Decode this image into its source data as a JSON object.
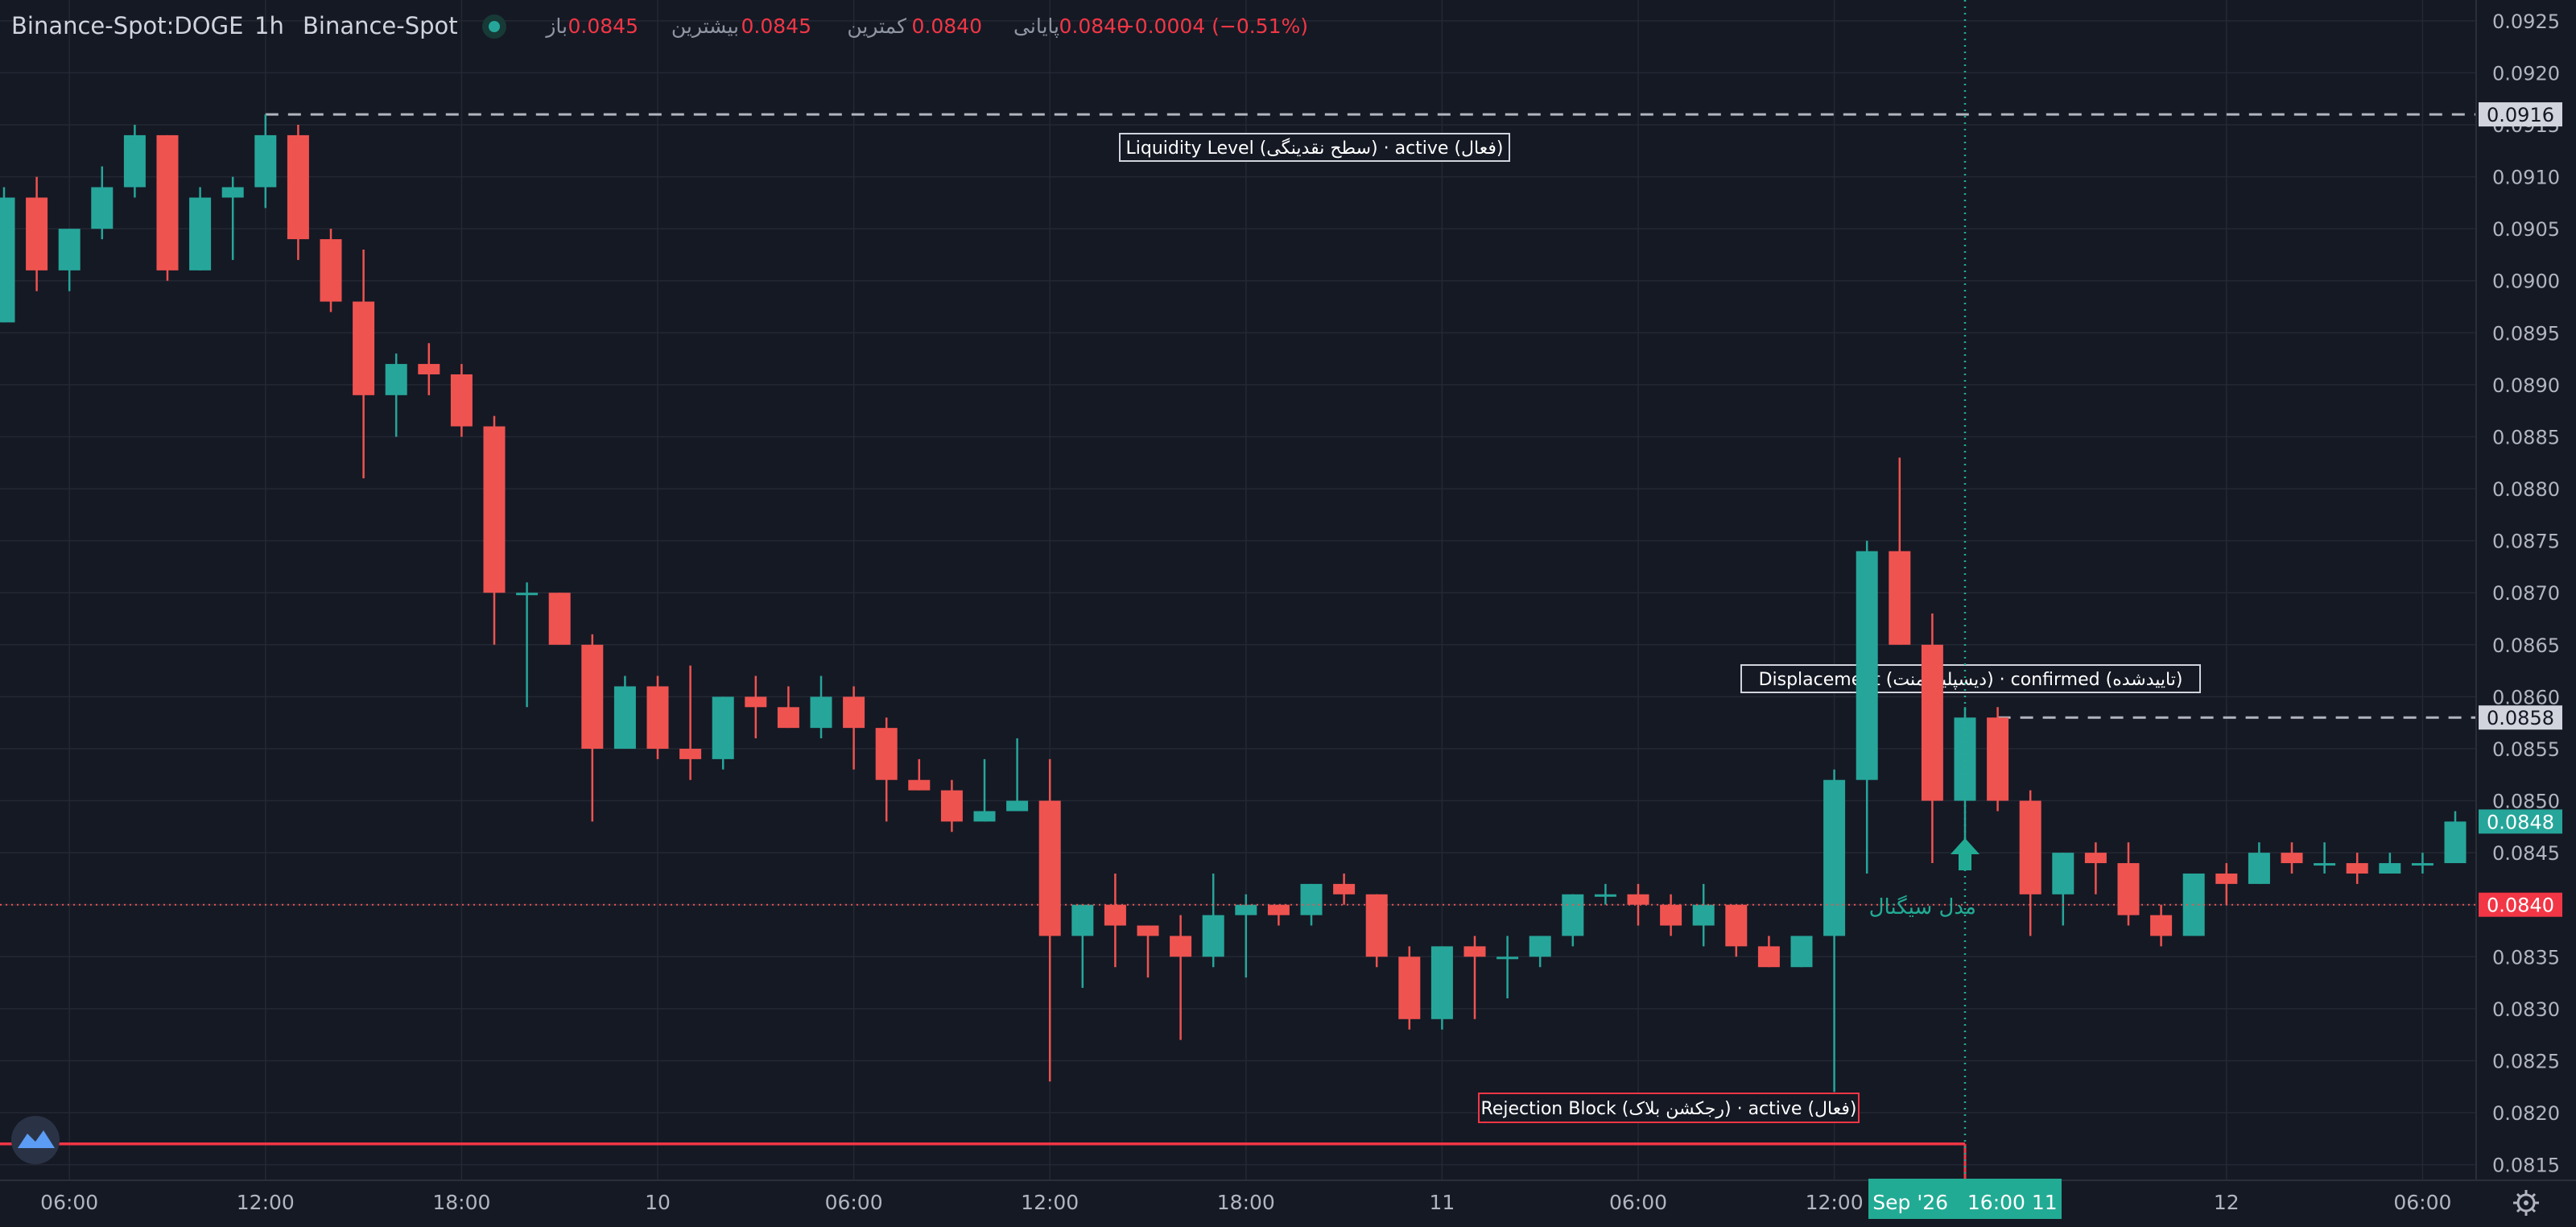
{
  "header": {
    "symbol": "Binance-Spot:DOGE",
    "interval": "1h",
    "exchange": "Binance-Spot",
    "open_label": "باز",
    "open_value": "0.0845",
    "high_label": "بیشترین",
    "high_value": "0.0845",
    "low_label": "کمترین",
    "low_value": "0.0840",
    "close_label": "پایانی",
    "close_value": "0.0840",
    "change": "−0.0004 (−0.51%)"
  },
  "colors": {
    "background": "#151924",
    "up": "#26a69a",
    "down": "#ef5350",
    "grid": "#242833",
    "text": "#b2b5be",
    "level_line": "#b2b5be"
  },
  "crosshair_time_label": "Sep '26   16:00 11",
  "signal_text": "مدل سیگنال",
  "chart_data": {
    "type": "candlestick",
    "interval": "1h",
    "ylim": [
      0.08135,
      0.0927
    ],
    "y_ticks": [
      "0.0815",
      "0.0820",
      "0.0825",
      "0.0830",
      "0.0835",
      "0.0840",
      "0.0845",
      "0.0850",
      "0.0855",
      "0.0860",
      "0.0865",
      "0.0870",
      "0.0875",
      "0.0880",
      "0.0885",
      "0.0890",
      "0.0895",
      "0.0900",
      "0.0905",
      "0.0910",
      "0.0915",
      "0.0920",
      "0.0925"
    ],
    "x_ticks": [
      {
        "label": "06:00",
        "i": 2
      },
      {
        "label": "12:00",
        "i": 8
      },
      {
        "label": "18:00",
        "i": 14
      },
      {
        "label": "10",
        "i": 20
      },
      {
        "label": "06:00",
        "i": 26
      },
      {
        "label": "12:00",
        "i": 32
      },
      {
        "label": "18:00",
        "i": 38
      },
      {
        "label": "11",
        "i": 44
      },
      {
        "label": "06:00",
        "i": 50
      },
      {
        "label": "12:00",
        "i": 56
      },
      {
        "label": "12",
        "i": 68
      },
      {
        "label": "06:00",
        "i": 74
      }
    ],
    "candles": [
      {
        "o": 0.0896,
        "h": 0.0909,
        "l": 0.0896,
        "c": 0.0908
      },
      {
        "o": 0.0908,
        "h": 0.091,
        "l": 0.0899,
        "c": 0.0901
      },
      {
        "o": 0.0901,
        "h": 0.0905,
        "l": 0.0899,
        "c": 0.0905
      },
      {
        "o": 0.0905,
        "h": 0.0911,
        "l": 0.0904,
        "c": 0.0909
      },
      {
        "o": 0.0909,
        "h": 0.0915,
        "l": 0.0908,
        "c": 0.0914
      },
      {
        "o": 0.0914,
        "h": 0.0914,
        "l": 0.09,
        "c": 0.0901
      },
      {
        "o": 0.0901,
        "h": 0.0909,
        "l": 0.0901,
        "c": 0.0908
      },
      {
        "o": 0.0908,
        "h": 0.091,
        "l": 0.0902,
        "c": 0.0909
      },
      {
        "o": 0.0909,
        "h": 0.0916,
        "l": 0.0907,
        "c": 0.0914
      },
      {
        "o": 0.0914,
        "h": 0.0915,
        "l": 0.0902,
        "c": 0.0904
      },
      {
        "o": 0.0904,
        "h": 0.0905,
        "l": 0.0897,
        "c": 0.0898
      },
      {
        "o": 0.0898,
        "h": 0.0903,
        "l": 0.0881,
        "c": 0.0889
      },
      {
        "o": 0.0889,
        "h": 0.0893,
        "l": 0.0885,
        "c": 0.0892
      },
      {
        "o": 0.0892,
        "h": 0.0894,
        "l": 0.0889,
        "c": 0.0891
      },
      {
        "o": 0.0891,
        "h": 0.0892,
        "l": 0.0885,
        "c": 0.0886
      },
      {
        "o": 0.0886,
        "h": 0.0887,
        "l": 0.0865,
        "c": 0.087
      },
      {
        "o": 0.087,
        "h": 0.0871,
        "l": 0.0859,
        "c": 0.087
      },
      {
        "o": 0.087,
        "h": 0.087,
        "l": 0.0865,
        "c": 0.0865
      },
      {
        "o": 0.0865,
        "h": 0.0866,
        "l": 0.0848,
        "c": 0.0855
      },
      {
        "o": 0.0855,
        "h": 0.0862,
        "l": 0.0855,
        "c": 0.0861
      },
      {
        "o": 0.0861,
        "h": 0.0862,
        "l": 0.0854,
        "c": 0.0855
      },
      {
        "o": 0.0855,
        "h": 0.0863,
        "l": 0.0852,
        "c": 0.0854
      },
      {
        "o": 0.0854,
        "h": 0.086,
        "l": 0.0853,
        "c": 0.086
      },
      {
        "o": 0.086,
        "h": 0.0862,
        "l": 0.0856,
        "c": 0.0859
      },
      {
        "o": 0.0859,
        "h": 0.0861,
        "l": 0.0857,
        "c": 0.0857
      },
      {
        "o": 0.0857,
        "h": 0.0862,
        "l": 0.0856,
        "c": 0.086
      },
      {
        "o": 0.086,
        "h": 0.0861,
        "l": 0.0853,
        "c": 0.0857
      },
      {
        "o": 0.0857,
        "h": 0.0858,
        "l": 0.0848,
        "c": 0.0852
      },
      {
        "o": 0.0852,
        "h": 0.0854,
        "l": 0.0851,
        "c": 0.0851
      },
      {
        "o": 0.0851,
        "h": 0.0852,
        "l": 0.0847,
        "c": 0.0848
      },
      {
        "o": 0.0848,
        "h": 0.0854,
        "l": 0.0848,
        "c": 0.0849
      },
      {
        "o": 0.0849,
        "h": 0.0856,
        "l": 0.0849,
        "c": 0.085
      },
      {
        "o": 0.085,
        "h": 0.0854,
        "l": 0.0823,
        "c": 0.0837
      },
      {
        "o": 0.0837,
        "h": 0.084,
        "l": 0.0832,
        "c": 0.084
      },
      {
        "o": 0.084,
        "h": 0.0843,
        "l": 0.0834,
        "c": 0.0838
      },
      {
        "o": 0.0838,
        "h": 0.0838,
        "l": 0.0833,
        "c": 0.0837
      },
      {
        "o": 0.0837,
        "h": 0.0839,
        "l": 0.0827,
        "c": 0.0835
      },
      {
        "o": 0.0835,
        "h": 0.0843,
        "l": 0.0834,
        "c": 0.0839
      },
      {
        "o": 0.0839,
        "h": 0.0841,
        "l": 0.0833,
        "c": 0.084
      },
      {
        "o": 0.084,
        "h": 0.084,
        "l": 0.0838,
        "c": 0.0839
      },
      {
        "o": 0.0839,
        "h": 0.0842,
        "l": 0.0838,
        "c": 0.0842
      },
      {
        "o": 0.0842,
        "h": 0.0843,
        "l": 0.084,
        "c": 0.0841
      },
      {
        "o": 0.0841,
        "h": 0.0841,
        "l": 0.0834,
        "c": 0.0835
      },
      {
        "o": 0.0835,
        "h": 0.0836,
        "l": 0.0828,
        "c": 0.0829
      },
      {
        "o": 0.0829,
        "h": 0.0836,
        "l": 0.0828,
        "c": 0.0836
      },
      {
        "o": 0.0836,
        "h": 0.0837,
        "l": 0.0829,
        "c": 0.0835
      },
      {
        "o": 0.0835,
        "h": 0.0837,
        "l": 0.0831,
        "c": 0.0835
      },
      {
        "o": 0.0835,
        "h": 0.0837,
        "l": 0.0834,
        "c": 0.0837
      },
      {
        "o": 0.0837,
        "h": 0.0841,
        "l": 0.0836,
        "c": 0.0841
      },
      {
        "o": 0.0841,
        "h": 0.0842,
        "l": 0.084,
        "c": 0.0841
      },
      {
        "o": 0.0841,
        "h": 0.0842,
        "l": 0.0838,
        "c": 0.084
      },
      {
        "o": 0.084,
        "h": 0.0841,
        "l": 0.0837,
        "c": 0.0838
      },
      {
        "o": 0.0838,
        "h": 0.0842,
        "l": 0.0836,
        "c": 0.084
      },
      {
        "o": 0.084,
        "h": 0.084,
        "l": 0.0835,
        "c": 0.0836
      },
      {
        "o": 0.0836,
        "h": 0.0837,
        "l": 0.0834,
        "c": 0.0834
      },
      {
        "o": 0.0834,
        "h": 0.0837,
        "l": 0.0834,
        "c": 0.0837
      },
      {
        "o": 0.0837,
        "h": 0.0853,
        "l": 0.0822,
        "c": 0.0852
      },
      {
        "o": 0.0852,
        "h": 0.0875,
        "l": 0.0843,
        "c": 0.0874
      },
      {
        "o": 0.0874,
        "h": 0.0883,
        "l": 0.0865,
        "c": 0.0865
      },
      {
        "o": 0.0865,
        "h": 0.0868,
        "l": 0.0844,
        "c": 0.085
      },
      {
        "o": 0.085,
        "h": 0.0859,
        "l": 0.0845,
        "c": 0.0858
      },
      {
        "o": 0.0858,
        "h": 0.0859,
        "l": 0.0849,
        "c": 0.085
      },
      {
        "o": 0.085,
        "h": 0.0851,
        "l": 0.0837,
        "c": 0.0841
      },
      {
        "o": 0.0841,
        "h": 0.0845,
        "l": 0.0838,
        "c": 0.0845
      },
      {
        "o": 0.0845,
        "h": 0.0846,
        "l": 0.0841,
        "c": 0.0844
      },
      {
        "o": 0.0844,
        "h": 0.0846,
        "l": 0.0838,
        "c": 0.0839
      },
      {
        "o": 0.0839,
        "h": 0.084,
        "l": 0.0836,
        "c": 0.0837
      },
      {
        "o": 0.0837,
        "h": 0.0843,
        "l": 0.0837,
        "c": 0.0843
      },
      {
        "o": 0.0843,
        "h": 0.0844,
        "l": 0.084,
        "c": 0.0842
      },
      {
        "o": 0.0842,
        "h": 0.0846,
        "l": 0.0842,
        "c": 0.0845
      },
      {
        "o": 0.0845,
        "h": 0.0846,
        "l": 0.0843,
        "c": 0.0844
      },
      {
        "o": 0.0844,
        "h": 0.0846,
        "l": 0.0843,
        "c": 0.0844
      },
      {
        "o": 0.0844,
        "h": 0.0845,
        "l": 0.0842,
        "c": 0.0843
      },
      {
        "o": 0.0843,
        "h": 0.0845,
        "l": 0.0843,
        "c": 0.0844
      },
      {
        "o": 0.0844,
        "h": 0.0845,
        "l": 0.0843,
        "c": 0.0844
      },
      {
        "o": 0.0844,
        "h": 0.0849,
        "l": 0.0844,
        "c": 0.0848
      }
    ],
    "levels": [
      {
        "name": "liquidity-level",
        "price": 0.0916,
        "from_i": 8,
        "label": "Liquidity Level (سطح نقدینگی) · active (فعال)",
        "price_label": "0.0916"
      },
      {
        "name": "displacement-level",
        "price": 0.0858,
        "from_i": 61,
        "label": "Displacement (دیسپلیسمنت) · confirmed (تاییدشده)",
        "price_label": "0.0858"
      },
      {
        "name": "rejection-block",
        "price": 0.0817,
        "from_i": -1,
        "to_i": 60,
        "label": "Rejection Block (رجکشن بلاک) · active (فعال)"
      }
    ],
    "last_price": {
      "value": 0.0848,
      "label": "0.0848"
    },
    "close_line": {
      "value": 0.084,
      "label": "0.0840"
    },
    "crosshair_i": 60,
    "signal": {
      "i": 60,
      "price": 0.0843
    }
  }
}
